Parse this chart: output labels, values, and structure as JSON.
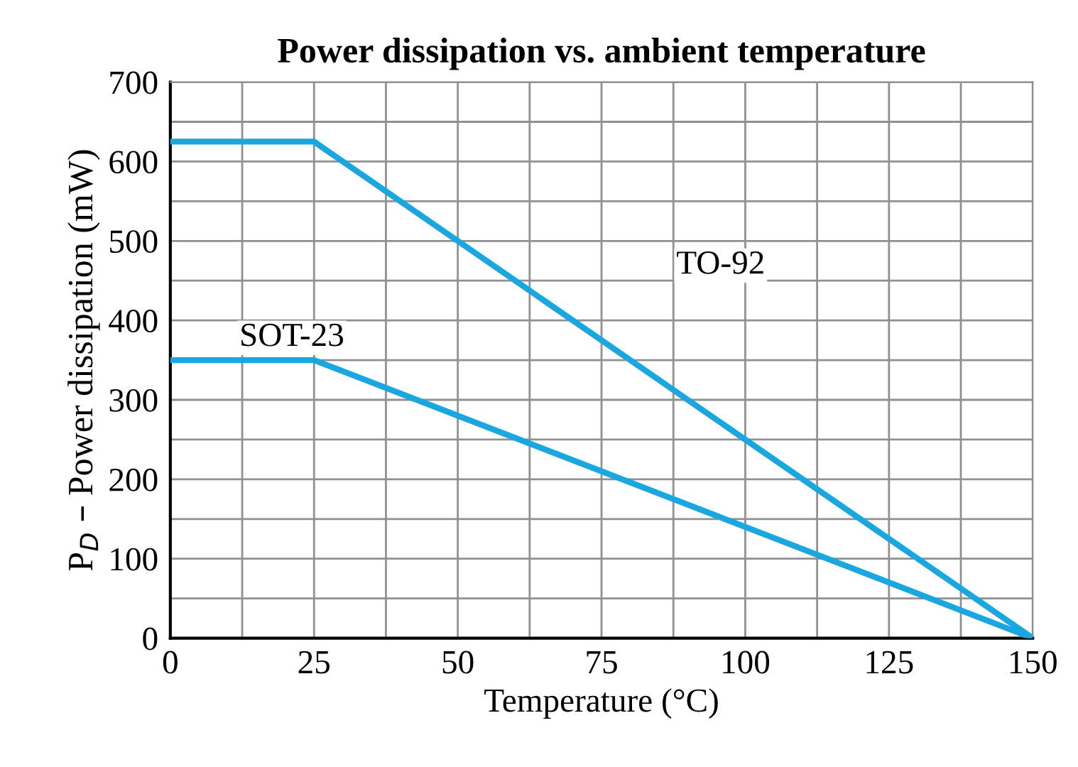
{
  "chart_data": {
    "type": "line",
    "title": "Power dissipation vs. ambient temperature",
    "xlabel": "Temperature (°C)",
    "ylabel": "P$_{D}$ – Power dissipation (mW)",
    "series": [
      {
        "name": "TO-92",
        "color": "#1aa7e0",
        "x": [
          0,
          25,
          150
        ],
        "values": [
          625,
          625,
          0
        ]
      },
      {
        "name": "SOT-23",
        "color": "#1aa7e0",
        "x": [
          0,
          25,
          150
        ],
        "values": [
          350,
          350,
          0
        ]
      }
    ],
    "xlim": [
      0,
      150
    ],
    "ylim": [
      0,
      700
    ],
    "xticks": [
      0,
      {
        "value": 12.5,
        "label": null
      },
      25,
      {
        "value": 37.5,
        "label": null
      },
      50,
      {
        "value": 62.5,
        "label": null
      },
      75,
      {
        "value": 87.5,
        "label": null
      },
      100,
      {
        "value": 112.5,
        "label": null
      },
      125,
      {
        "value": 137.5,
        "label": null
      },
      150
    ],
    "yticks": [
      0,
      {
        "value": 50,
        "label": null
      },
      100,
      {
        "value": 150,
        "label": null
      },
      200,
      {
        "value": 250,
        "label": null
      },
      300,
      {
        "value": 350,
        "label": null
      },
      400,
      {
        "value": 450,
        "label": null
      },
      500,
      {
        "value": 550,
        "label": null
      },
      600,
      {
        "value": 650,
        "label": null
      },
      700
    ],
    "grid": true,
    "legend": false,
    "marker": "none",
    "line_style": "solid"
  }
}
